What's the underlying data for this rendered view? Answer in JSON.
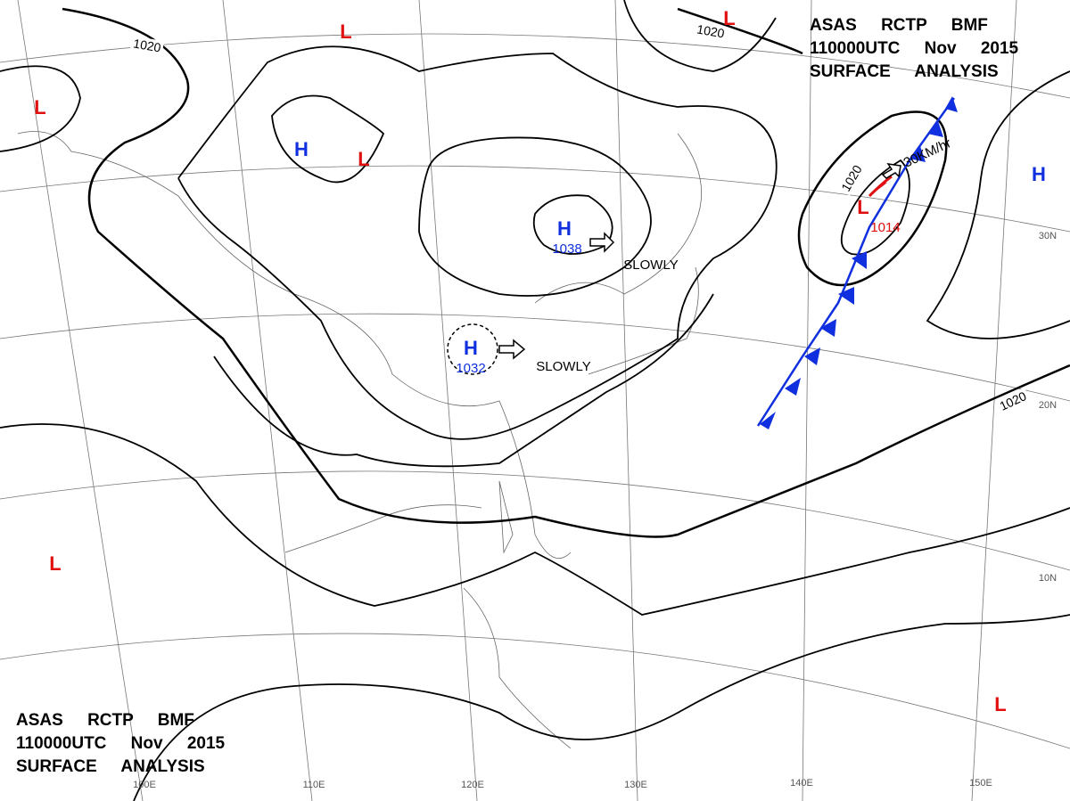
{
  "titles": [
    {
      "lines": [
        "ASAS RCTP BMF",
        "110000UTC Nov 2015",
        "SURFACE ANALYSIS"
      ]
    },
    {
      "lines": [
        "ASAS RCTP BMF",
        "110000UTC Nov 2015",
        "SURFACE ANALYSIS"
      ]
    }
  ],
  "centers": [
    {
      "symbol": "H",
      "pressure": 1038
    },
    {
      "symbol": "H",
      "pressure": 1032
    },
    {
      "symbol": "L",
      "pressure": 1014
    },
    {
      "symbol": "H"
    },
    {
      "symbol": "H"
    },
    {
      "symbol": "L"
    },
    {
      "symbol": "L"
    },
    {
      "symbol": "L"
    },
    {
      "symbol": "L"
    },
    {
      "symbol": "L"
    },
    {
      "symbol": "L"
    }
  ],
  "isobar_labels": [
    1020,
    1020,
    1020,
    1020
  ],
  "motion_labels": [
    "SLOWLY",
    "SLOWLY",
    "30KM/hr"
  ],
  "longitude_labels": [
    "100E",
    "110E",
    "120E",
    "130E",
    "140E",
    "150E"
  ],
  "latitude_labels": [
    "30N",
    "20N",
    "10N"
  ]
}
